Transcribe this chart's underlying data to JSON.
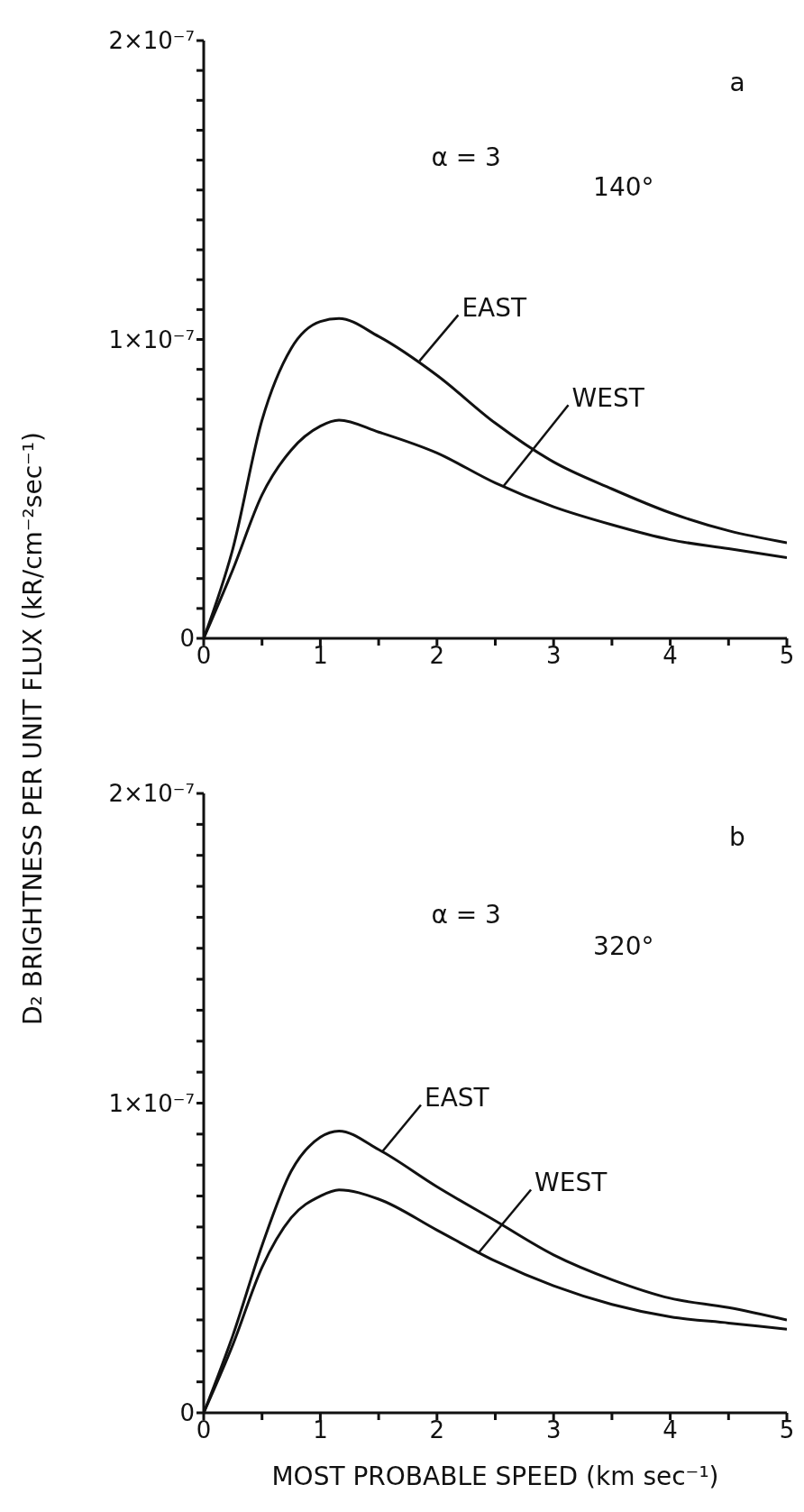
{
  "chart_data": [
    {
      "type": "line",
      "ylabel": "D₂ BRIGHTNESS PER UNIT FLUX (kR/cm⁻²sec⁻¹)",
      "annotations": [
        "a",
        "α = 3",
        "140°"
      ],
      "x": [
        0,
        0.25,
        0.5,
        0.75,
        1,
        1.16,
        1.5,
        2,
        2.5,
        3,
        3.5,
        4,
        4.5,
        5
      ],
      "series": [
        {
          "name": "EAST",
          "color": "#111111",
          "values": [
            0,
            3e-08,
            7.3e-08,
            9.7e-08,
            1.06e-07,
            1.07e-07,
            1.01e-07,
            8.8e-08,
            7.2e-08,
            5.9e-08,
            5e-08,
            4.2e-08,
            3.6e-08,
            3.2e-08
          ]
        },
        {
          "name": "WEST",
          "color": "#111111",
          "values": [
            0,
            2.3e-08,
            4.8e-08,
            6.3e-08,
            7.1e-08,
            7.3e-08,
            6.9e-08,
            6.2e-08,
            5.2e-08,
            4.4e-08,
            3.8e-08,
            3.3e-08,
            3e-08,
            2.7e-08
          ]
        }
      ],
      "xlim": [
        0,
        5
      ],
      "ylim": [
        0,
        2e-07
      ],
      "xticks": [
        0,
        {
          "value": 0.5,
          "label": null
        },
        1,
        {
          "value": 1.5,
          "label": null
        },
        2,
        {
          "value": 2.5,
          "label": null
        },
        3,
        {
          "value": 3.5,
          "label": null
        },
        4,
        {
          "value": 4.5,
          "label": null
        },
        5
      ],
      "yticks": [
        0,
        {
          "value": 1e-08,
          "label": null
        },
        {
          "value": 2e-08,
          "label": null
        },
        {
          "value": 3e-08,
          "label": null
        },
        {
          "value": 4e-08,
          "label": null
        },
        {
          "value": 5e-08,
          "label": null
        },
        {
          "value": 6e-08,
          "label": null
        },
        {
          "value": 7e-08,
          "label": null
        },
        {
          "value": 8e-08,
          "label": null
        },
        {
          "value": 9e-08,
          "label": null
        },
        {
          "value": 1e-07,
          "label": "1×10⁻⁷"
        },
        {
          "value": 1.1e-07,
          "label": null
        },
        {
          "value": 1.2e-07,
          "label": null
        },
        {
          "value": 1.3e-07,
          "label": null
        },
        {
          "value": 1.4e-07,
          "label": null
        },
        {
          "value": 1.5e-07,
          "label": null
        },
        {
          "value": 1.6e-07,
          "label": null
        },
        {
          "value": 1.7e-07,
          "label": null
        },
        {
          "value": 1.8e-07,
          "label": null
        },
        {
          "value": 1.9e-07,
          "label": null
        },
        {
          "value": 2e-07,
          "label": "2×10⁻⁷"
        }
      ]
    },
    {
      "type": "line",
      "xlabel": "MOST PROBABLE SPEED (km sec⁻¹)",
      "annotations": [
        "b",
        "α = 3",
        "320°"
      ],
      "x": [
        0,
        0.25,
        0.5,
        0.75,
        1,
        1.16,
        1.5,
        2,
        2.5,
        3,
        3.5,
        4,
        4.5,
        5
      ],
      "series": [
        {
          "name": "EAST",
          "color": "#111111",
          "values": [
            0,
            2.5e-08,
            5.4e-08,
            7.8e-08,
            8.9e-08,
            9.1e-08,
            8.5e-08,
            7.3e-08,
            6.2e-08,
            5.1e-08,
            4.3e-08,
            3.7e-08,
            3.4e-08,
            3e-08
          ]
        },
        {
          "name": "WEST",
          "color": "#111111",
          "values": [
            0,
            2.2e-08,
            4.7e-08,
            6.3e-08,
            7e-08,
            7.2e-08,
            6.9e-08,
            5.9e-08,
            4.9e-08,
            4.1e-08,
            3.5e-08,
            3.1e-08,
            2.9e-08,
            2.7e-08
          ]
        }
      ],
      "xlim": [
        0,
        5
      ],
      "ylim": [
        0,
        2e-07
      ],
      "xticks": [
        0,
        {
          "value": 0.5,
          "label": null
        },
        1,
        {
          "value": 1.5,
          "label": null
        },
        2,
        {
          "value": 2.5,
          "label": null
        },
        3,
        {
          "value": 3.5,
          "label": null
        },
        4,
        {
          "value": 4.5,
          "label": null
        },
        5
      ],
      "yticks": [
        0,
        {
          "value": 1e-08,
          "label": null
        },
        {
          "value": 2e-08,
          "label": null
        },
        {
          "value": 3e-08,
          "label": null
        },
        {
          "value": 4e-08,
          "label": null
        },
        {
          "value": 5e-08,
          "label": null
        },
        {
          "value": 6e-08,
          "label": null
        },
        {
          "value": 7e-08,
          "label": null
        },
        {
          "value": 8e-08,
          "label": null
        },
        {
          "value": 9e-08,
          "label": null
        },
        {
          "value": 1e-07,
          "label": "1×10⁻⁷"
        },
        {
          "value": 1.1e-07,
          "label": null
        },
        {
          "value": 1.2e-07,
          "label": null
        },
        {
          "value": 1.3e-07,
          "label": null
        },
        {
          "value": 1.4e-07,
          "label": null
        },
        {
          "value": 1.5e-07,
          "label": null
        },
        {
          "value": 1.6e-07,
          "label": null
        },
        {
          "value": 1.7e-07,
          "label": null
        },
        {
          "value": 1.8e-07,
          "label": null
        },
        {
          "value": 1.9e-07,
          "label": null
        },
        {
          "value": 2e-07,
          "label": "2×10⁻⁷"
        }
      ]
    }
  ]
}
